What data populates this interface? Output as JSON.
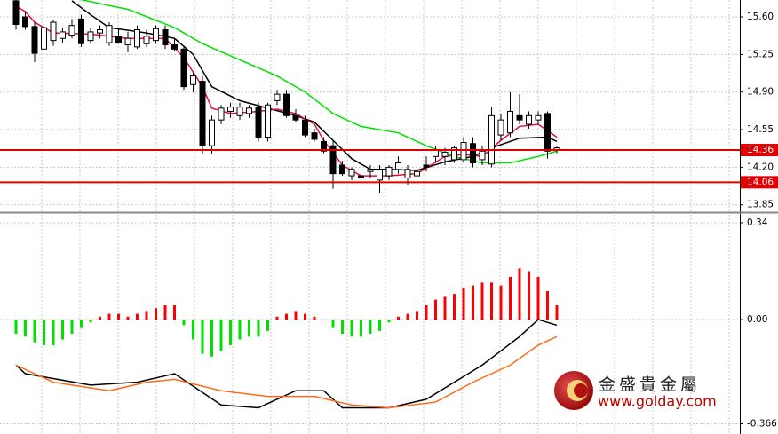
{
  "chart_data": [
    {
      "type": "candlestick",
      "ohlc": [
        [
          15.75,
          15.76,
          15.48,
          15.53
        ],
        [
          15.6,
          15.64,
          15.48,
          15.51
        ],
        [
          15.51,
          15.55,
          15.18,
          15.26
        ],
        [
          15.3,
          15.55,
          15.28,
          15.5
        ],
        [
          15.38,
          15.57,
          15.33,
          15.55
        ],
        [
          15.4,
          15.5,
          15.36,
          15.46
        ],
        [
          15.43,
          15.58,
          15.4,
          15.52
        ],
        [
          15.58,
          15.62,
          15.32,
          15.35
        ],
        [
          15.38,
          15.5,
          15.35,
          15.46
        ],
        [
          15.45,
          15.52,
          15.4,
          15.48
        ],
        [
          15.36,
          15.55,
          15.33,
          15.52
        ],
        [
          15.42,
          15.5,
          15.35,
          15.36
        ],
        [
          15.34,
          15.46,
          15.27,
          15.4
        ],
        [
          15.32,
          15.52,
          15.3,
          15.48
        ],
        [
          15.35,
          15.48,
          15.32,
          15.42
        ],
        [
          15.38,
          15.52,
          15.35,
          15.49
        ],
        [
          15.48,
          15.52,
          15.3,
          15.34
        ],
        [
          15.34,
          15.4,
          15.28,
          15.3
        ],
        [
          15.3,
          15.33,
          14.92,
          14.95
        ],
        [
          14.97,
          15.08,
          14.9,
          15.05
        ],
        [
          15.0,
          15.05,
          14.32,
          14.4
        ],
        [
          14.4,
          14.68,
          14.32,
          14.64
        ],
        [
          14.64,
          14.78,
          14.6,
          14.75
        ],
        [
          14.72,
          14.8,
          14.66,
          14.76
        ],
        [
          14.68,
          14.8,
          14.64,
          14.76
        ],
        [
          14.7,
          14.78,
          14.66,
          14.75
        ],
        [
          14.76,
          14.8,
          14.44,
          14.48
        ],
        [
          14.48,
          14.8,
          14.44,
          14.78
        ],
        [
          14.82,
          14.92,
          14.78,
          14.88
        ],
        [
          14.88,
          14.92,
          14.66,
          14.68
        ],
        [
          14.68,
          14.74,
          14.62,
          14.64
        ],
        [
          14.64,
          14.68,
          14.48,
          14.5
        ],
        [
          14.52,
          14.56,
          14.44,
          14.46
        ],
        [
          14.44,
          14.48,
          14.33,
          14.35
        ],
        [
          14.4,
          14.44,
          14.0,
          14.14
        ],
        [
          14.22,
          14.26,
          14.12,
          14.14
        ],
        [
          14.12,
          14.2,
          14.08,
          14.18
        ],
        [
          14.12,
          14.18,
          14.06,
          14.1
        ],
        [
          14.16,
          14.22,
          14.1,
          14.18
        ],
        [
          14.08,
          14.22,
          13.96,
          14.18
        ],
        [
          14.12,
          14.22,
          14.08,
          14.2
        ],
        [
          14.18,
          14.3,
          14.14,
          14.24
        ],
        [
          14.1,
          14.22,
          14.04,
          14.18
        ],
        [
          14.12,
          14.2,
          14.08,
          14.16
        ],
        [
          14.22,
          14.3,
          14.16,
          14.2
        ],
        [
          14.3,
          14.4,
          14.24,
          14.36
        ],
        [
          14.3,
          14.38,
          14.22,
          14.34
        ],
        [
          14.27,
          14.4,
          14.24,
          14.38
        ],
        [
          14.27,
          14.48,
          14.24,
          14.43
        ],
        [
          14.42,
          14.48,
          14.2,
          14.24
        ],
        [
          14.27,
          14.4,
          14.22,
          14.35
        ],
        [
          14.23,
          14.76,
          14.2,
          14.68
        ],
        [
          14.5,
          14.7,
          14.45,
          14.64
        ],
        [
          14.52,
          14.9,
          14.48,
          14.72
        ],
        [
          14.68,
          14.88,
          14.6,
          14.64
        ],
        [
          14.6,
          14.72,
          14.56,
          14.68
        ],
        [
          14.64,
          14.72,
          14.6,
          14.68
        ],
        [
          14.7,
          14.72,
          14.28,
          14.35
        ],
        [
          14.36,
          14.4,
          14.33,
          14.38
        ]
      ],
      "up_color": "#ffffff",
      "down_color": "#000000",
      "series": [
        {
          "color": "#000000",
          "x": [
            6,
            8,
            10,
            14,
            17,
            19,
            21,
            24,
            27,
            30,
            32,
            34,
            36,
            38,
            40,
            43,
            46,
            49,
            51,
            54,
            57,
            58
          ],
          "values": [
            15.75,
            15.62,
            15.5,
            15.45,
            15.4,
            15.25,
            14.95,
            14.82,
            14.75,
            14.68,
            14.62,
            14.45,
            14.28,
            14.18,
            14.18,
            14.17,
            14.25,
            14.3,
            14.38,
            14.47,
            14.48,
            14.44
          ]
        },
        {
          "color": "#e0103a",
          "x": [
            0,
            1,
            2,
            4,
            8,
            12,
            16,
            18,
            20,
            21,
            23,
            26,
            28,
            30,
            32,
            33,
            35,
            37,
            40,
            43,
            46,
            48,
            50,
            52,
            54,
            56,
            58
          ],
          "values": [
            15.7,
            15.65,
            15.55,
            15.45,
            15.44,
            15.4,
            15.4,
            15.22,
            14.95,
            14.75,
            14.7,
            14.72,
            14.74,
            14.7,
            14.6,
            14.45,
            14.22,
            14.12,
            14.12,
            14.14,
            14.3,
            14.32,
            14.3,
            14.45,
            14.58,
            14.6,
            14.48
          ]
        },
        {
          "color": "#00e000",
          "x": [
            7,
            12,
            17,
            20,
            24,
            28,
            31,
            34,
            37,
            41,
            44,
            47,
            50,
            53,
            56,
            58
          ],
          "values": [
            15.76,
            15.67,
            15.5,
            15.35,
            15.2,
            15.05,
            14.9,
            14.7,
            14.58,
            14.52,
            14.4,
            14.3,
            14.24,
            14.24,
            14.3,
            14.35
          ]
        }
      ],
      "levels": [
        14.36,
        14.06
      ],
      "level_color": "#e00000",
      "ylim": [
        13.79,
        15.757
      ],
      "yticks": [
        {
          "value": 15.6,
          "label": "15.60"
        },
        15.25,
        {
          "value": 14.9,
          "label": "14.90"
        },
        14.55,
        {
          "value": 14.2,
          "label": "14.20"
        },
        13.85
      ],
      "grid": true
    },
    {
      "type": "macd",
      "histogram": [
        -0.05,
        -0.06,
        -0.08,
        -0.09,
        -0.09,
        -0.07,
        -0.05,
        -0.03,
        -0.01,
        0.01,
        0.02,
        0.02,
        0.01,
        0.02,
        0.03,
        0.04,
        0.05,
        0.05,
        -0.02,
        -0.07,
        -0.12,
        -0.13,
        -0.11,
        -0.09,
        -0.07,
        -0.06,
        -0.06,
        -0.04,
        0.01,
        0.02,
        0.03,
        0.02,
        0.01,
        0.0,
        -0.03,
        -0.05,
        -0.06,
        -0.06,
        -0.05,
        -0.04,
        -0.01,
        0.01,
        0.02,
        0.03,
        0.05,
        0.07,
        0.08,
        0.09,
        0.11,
        0.12,
        0.13,
        0.13,
        0.12,
        0.15,
        0.18,
        0.17,
        0.15,
        0.1,
        0.05
      ],
      "pos_color": "#ff0000",
      "neg_color": "#00e000",
      "series": [
        {
          "color": "#000000",
          "x": [
            0,
            1,
            8,
            13,
            17,
            22,
            26,
            30,
            33,
            35,
            40,
            44,
            47,
            50,
            52,
            54,
            56,
            58
          ],
          "values": [
            -0.16,
            -0.19,
            -0.23,
            -0.22,
            -0.19,
            -0.3,
            -0.31,
            -0.25,
            -0.25,
            -0.31,
            -0.31,
            -0.28,
            -0.22,
            -0.16,
            -0.11,
            -0.06,
            0.0,
            -0.02
          ]
        },
        {
          "color": "#ff6a1a",
          "x": [
            0,
            4,
            10,
            14,
            17,
            22,
            27,
            32,
            36,
            40,
            45,
            49,
            53,
            56,
            58
          ],
          "values": [
            -0.16,
            -0.22,
            -0.25,
            -0.22,
            -0.21,
            -0.25,
            -0.27,
            -0.27,
            -0.3,
            -0.31,
            -0.29,
            -0.22,
            -0.16,
            -0.09,
            -0.06
          ]
        }
      ],
      "ylim": [
        -0.402,
        0.368
      ],
      "yticks": [
        0.34,
        {
          "value": 0,
          "label": "0.00"
        },
        -0.366
      ],
      "grid": true
    }
  ],
  "watermark": {
    "name": "金盛貴金屬",
    "url": "www.golday.com"
  }
}
